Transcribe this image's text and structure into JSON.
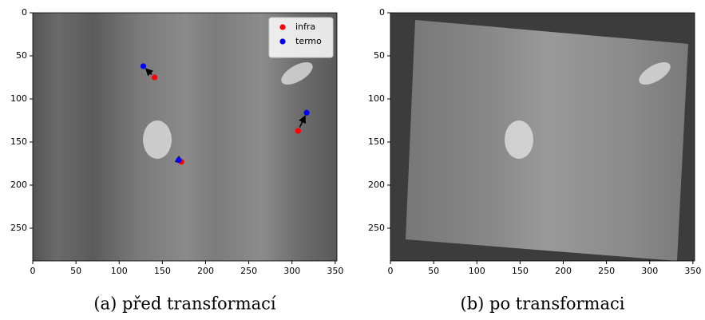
{
  "chart_data": [
    {
      "type": "scatter",
      "caption": "(a) před transformací",
      "series": [
        {
          "name": "infra",
          "color": "#ff0000",
          "x": [
            141,
            307,
            172
          ],
          "values": [
            75,
            137,
            173
          ]
        },
        {
          "name": "termo",
          "color": "#0000ff",
          "x": [
            128,
            317,
            169
          ],
          "values": [
            62,
            116,
            171
          ]
        }
      ],
      "arrows": true,
      "legend": "upper right",
      "xlim": [
        0,
        352
      ],
      "ylim": [
        288,
        0
      ],
      "xticks": [
        0,
        50,
        100,
        150,
        200,
        250,
        300,
        350
      ],
      "yticks": [
        0,
        50,
        100,
        150,
        200,
        250
      ]
    },
    {
      "type": "image",
      "caption": "(b) po transformaci",
      "xlim": [
        0,
        352
      ],
      "ylim": [
        288,
        0
      ],
      "xticks": [
        0,
        50,
        100,
        150,
        200,
        250,
        300,
        350
      ],
      "yticks": [
        0,
        50,
        100,
        150,
        200,
        250
      ]
    }
  ]
}
